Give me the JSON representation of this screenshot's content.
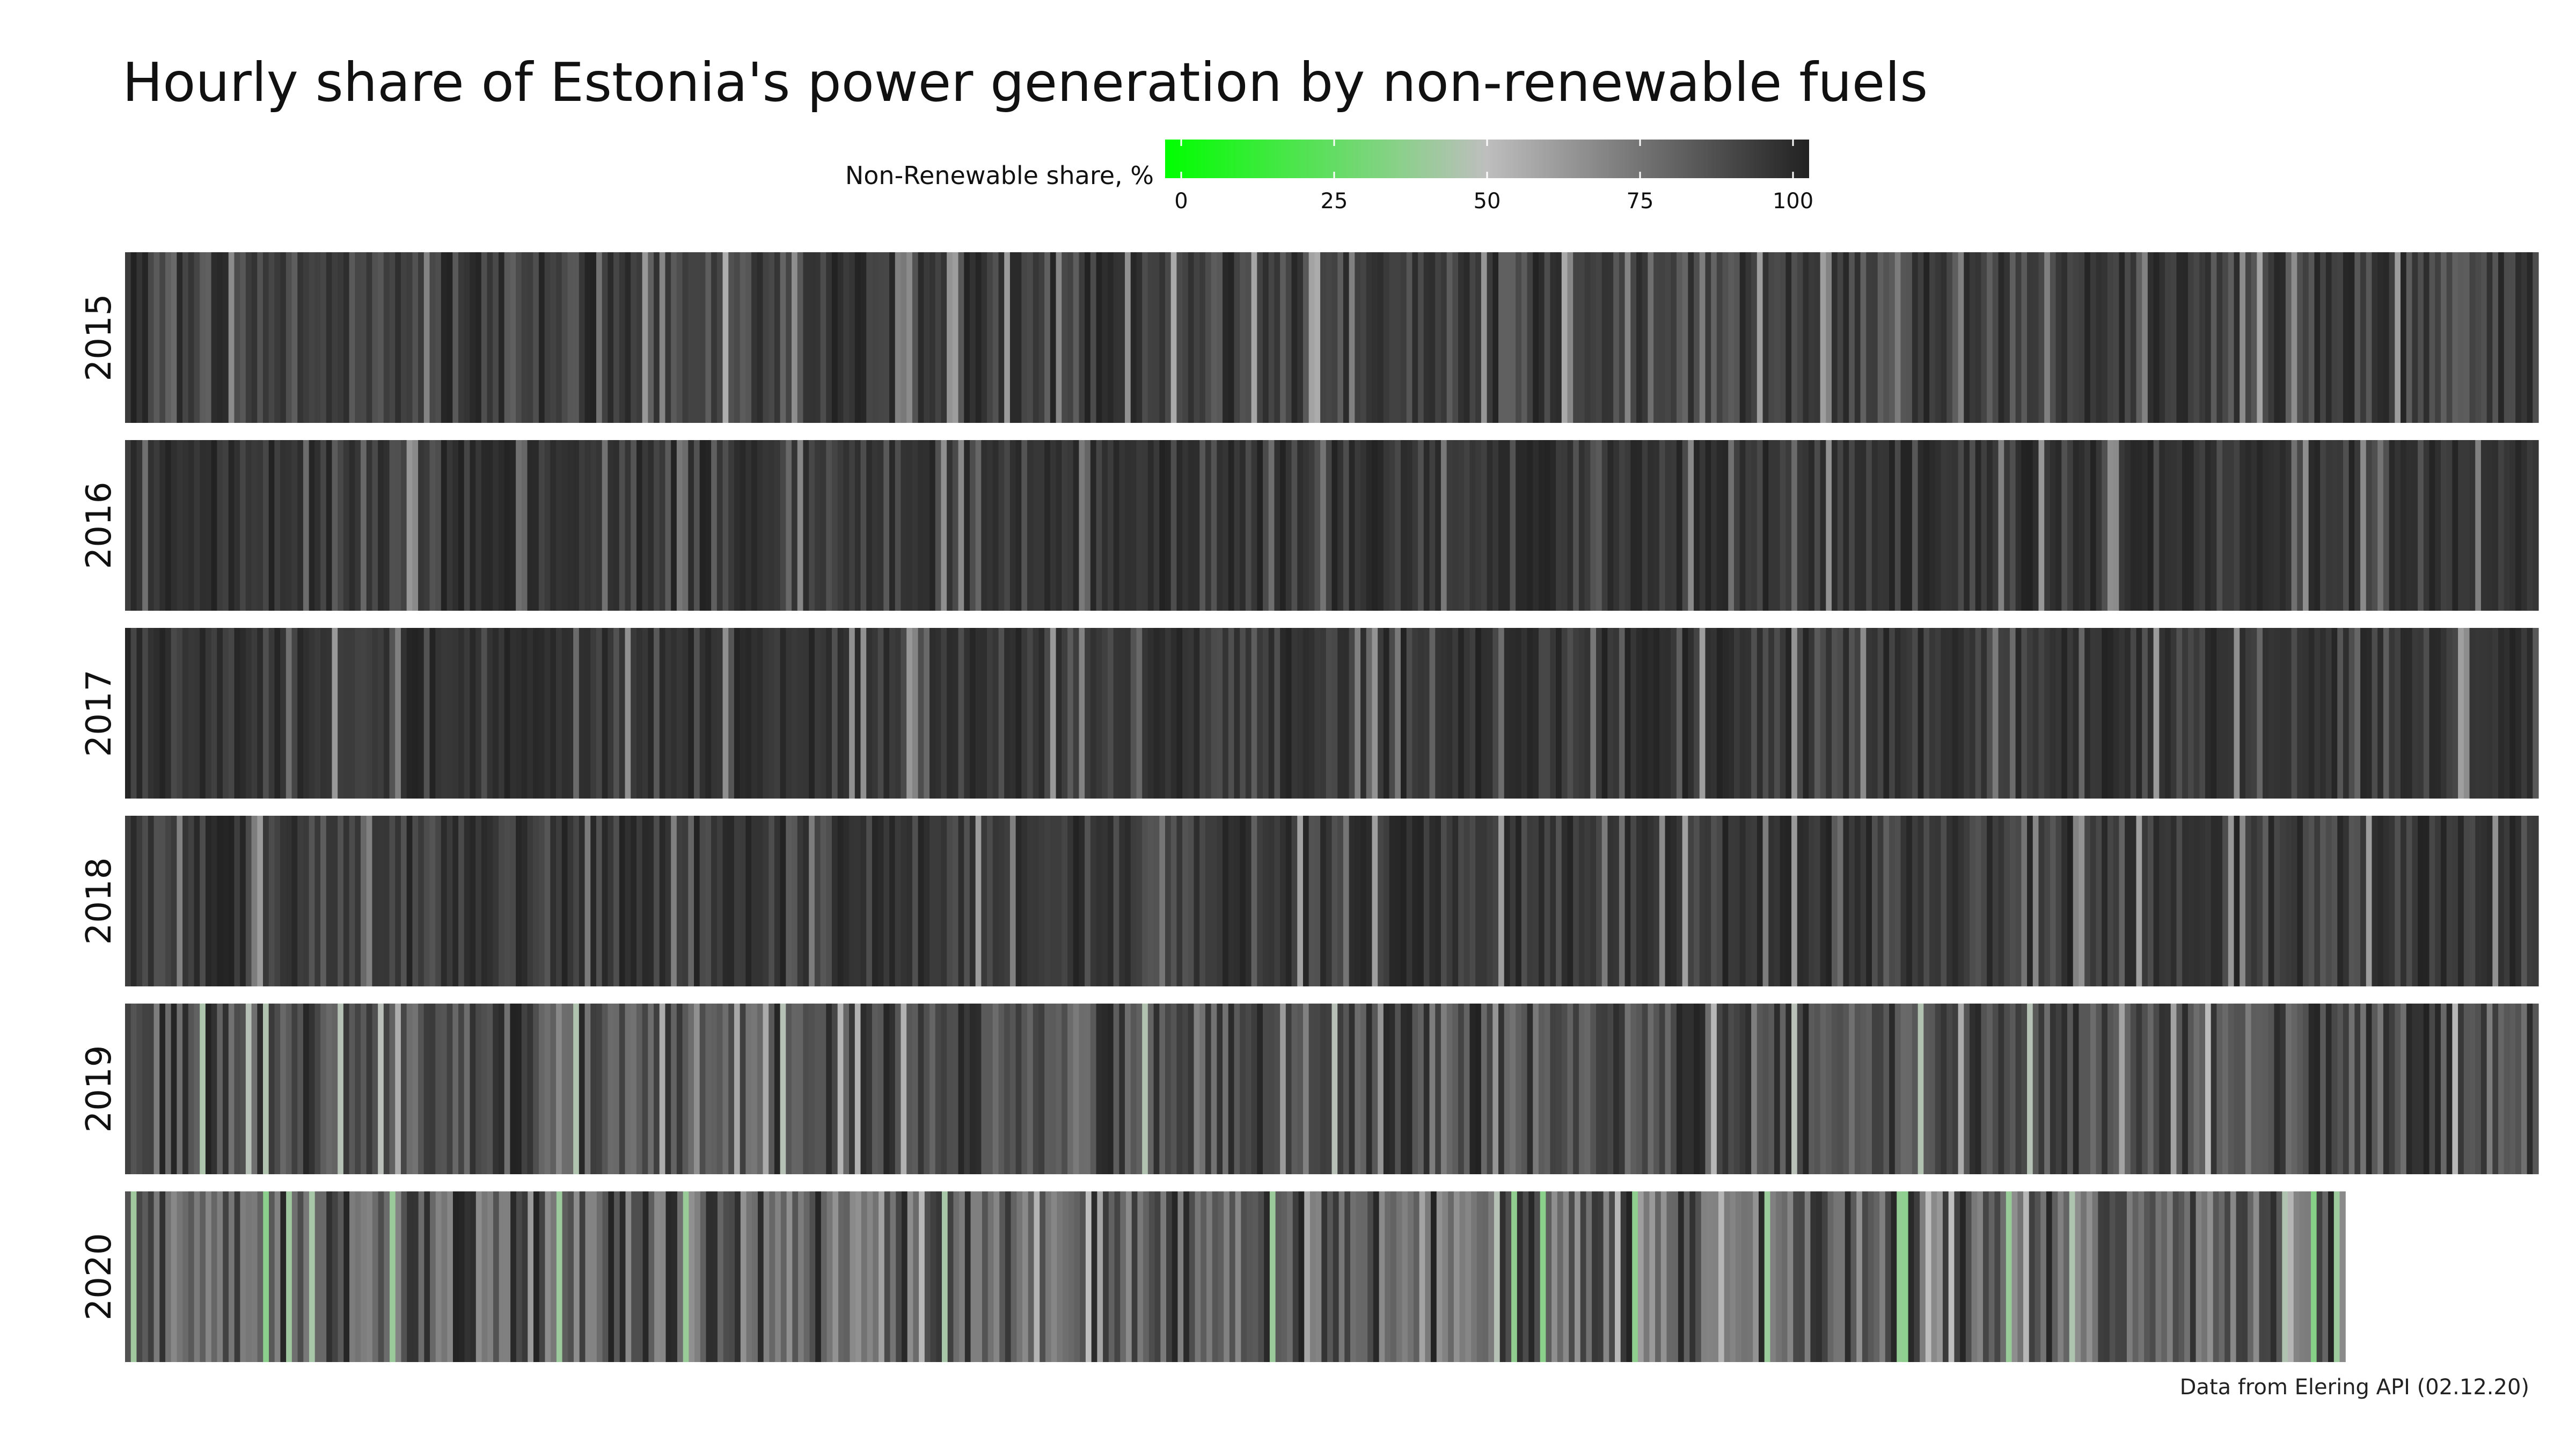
{
  "title": "Hourly share of Estonia's power generation by non-renewable fuels",
  "caption": "Data from Elering API (02.12.20)",
  "colors": {
    "scale_low": "#00ff00",
    "scale_mid": "#bebebe",
    "scale_high": "#222222",
    "background": "#ffffff"
  },
  "chart_data": {
    "type": "heatmap",
    "x": "hour of year",
    "legend": {
      "title": "Non-Renewable share, %",
      "range": [
        0,
        100
      ],
      "ticks": [
        "0",
        "25",
        "50",
        "75",
        "100"
      ],
      "tick_values": [
        0,
        25,
        50,
        75,
        100
      ],
      "colors": [
        "#00ff00",
        "#bebebe",
        "#222222"
      ]
    },
    "rows": [
      {
        "year": "2015",
        "coverage": 1.0,
        "typical_share": 88,
        "low_share": 55
      },
      {
        "year": "2016",
        "coverage": 1.0,
        "typical_share": 92,
        "low_share": 62
      },
      {
        "year": "2017",
        "coverage": 1.0,
        "typical_share": 92,
        "low_share": 58
      },
      {
        "year": "2018",
        "coverage": 1.0,
        "typical_share": 91,
        "low_share": 58
      },
      {
        "year": "2019",
        "coverage": 1.0,
        "typical_share": 82,
        "low_share": 45
      },
      {
        "year": "2020",
        "coverage": 0.92,
        "typical_share": 72,
        "low_share": 35
      }
    ]
  }
}
